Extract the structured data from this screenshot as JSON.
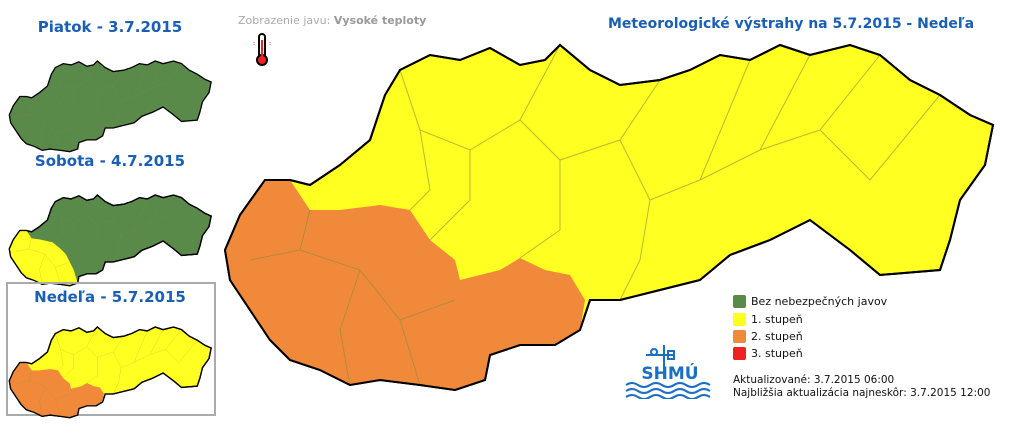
{
  "thumbnails": [
    {
      "label": "Piatok - 3.7.2015",
      "state": "all-green"
    },
    {
      "label": "Sobota - 4.7.2015",
      "state": "west-yellow"
    },
    {
      "label": "Nedeľa - 5.7.2015",
      "state": "selected"
    }
  ],
  "phenomenon": {
    "prefix": "Zobrazenie javu:",
    "value": "Vysoké teploty",
    "icon": "thermometer-icon"
  },
  "title": "Meteorologické výstrahy na 5.7.2015 - Nedeľa",
  "legend": [
    {
      "label": "Bez nebezpečných javov",
      "color": "#5a8a4a"
    },
    {
      "label": "1. stupeň",
      "color": "#ffff22"
    },
    {
      "label": "2. stupeň",
      "color": "#f08a3a"
    },
    {
      "label": "3. stupeň",
      "color": "#ee2222"
    }
  ],
  "logo": "SHMÚ",
  "updated": "Aktualizované: 3.7.2015 06:00",
  "next_update": "Najbližšia aktualizácia najneskôr: 3.7.2015 12:00"
}
